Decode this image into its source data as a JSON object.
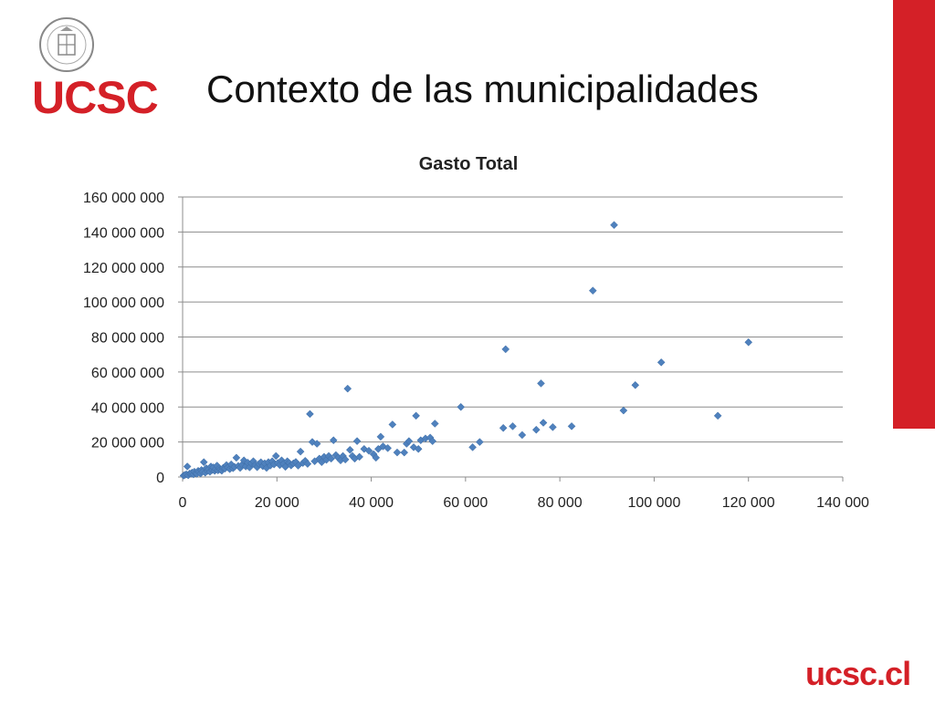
{
  "slide": {
    "title": "Contexto de las municipalidades",
    "logo_text": "UCSC",
    "footer_text": "ucsc.cl",
    "accent_color": "#d42027"
  },
  "icons": {
    "seal": "university-seal-icon"
  },
  "chart_data": {
    "type": "scatter",
    "title": "Gasto Total",
    "xlabel": "",
    "ylabel": "",
    "xlim": [
      0,
      140000
    ],
    "ylim": [
      0,
      160000000
    ],
    "x_ticks": [
      "0",
      "20 000",
      "40 000",
      "60 000",
      "80 000",
      "100 000",
      "120 000",
      "140 000"
    ],
    "y_ticks": [
      "0",
      "20 000 000",
      "40 000 000",
      "60 000 000",
      "80 000 000",
      "100 000 000",
      "120 000 000",
      "140 000 000",
      "160 000 000"
    ],
    "grid": true,
    "legend": "none",
    "marker_color": "#4f81bd",
    "points": [
      [
        200,
        800000
      ],
      [
        500,
        1200000
      ],
      [
        800,
        1500000
      ],
      [
        1000,
        6000000
      ],
      [
        1200,
        1000000
      ],
      [
        1500,
        2000000
      ],
      [
        1800,
        1800000
      ],
      [
        2000,
        2500000
      ],
      [
        2300,
        1500000
      ],
      [
        2500,
        3000000
      ],
      [
        2800,
        2200000
      ],
      [
        3000,
        1800000
      ],
      [
        3300,
        3500000
      ],
      [
        3500,
        2800000
      ],
      [
        3800,
        2000000
      ],
      [
        4000,
        4000000
      ],
      [
        4200,
        3000000
      ],
      [
        4500,
        8500000
      ],
      [
        4800,
        2500000
      ],
      [
        5000,
        5000000
      ],
      [
        5300,
        3500000
      ],
      [
        5500,
        4500000
      ],
      [
        5800,
        3000000
      ],
      [
        6000,
        6000000
      ],
      [
        6300,
        4000000
      ],
      [
        6500,
        5500000
      ],
      [
        6800,
        3500000
      ],
      [
        7000,
        4500000
      ],
      [
        7300,
        6500000
      ],
      [
        7500,
        3800000
      ],
      [
        7800,
        5000000
      ],
      [
        8000,
        4200000
      ],
      [
        8300,
        3600000
      ],
      [
        8600,
        5200000
      ],
      [
        9000,
        4800000
      ],
      [
        9300,
        6800000
      ],
      [
        9600,
        5500000
      ],
      [
        10000,
        4500000
      ],
      [
        10300,
        7200000
      ],
      [
        10700,
        5000000
      ],
      [
        11000,
        5800000
      ],
      [
        11400,
        11000000
      ],
      [
        11800,
        6300000
      ],
      [
        12200,
        5200000
      ],
      [
        12600,
        7000000
      ],
      [
        13000,
        9500000
      ],
      [
        13400,
        6000000
      ],
      [
        13800,
        8200000
      ],
      [
        14200,
        5500000
      ],
      [
        14600,
        7800000
      ],
      [
        15000,
        9000000
      ],
      [
        15400,
        6800000
      ],
      [
        15800,
        5600000
      ],
      [
        16200,
        7500000
      ],
      [
        16600,
        8400000
      ],
      [
        17000,
        6200000
      ],
      [
        17400,
        7800000
      ],
      [
        17800,
        5200000
      ],
      [
        18200,
        8500000
      ],
      [
        18600,
        6500000
      ],
      [
        19000,
        9000000
      ],
      [
        19400,
        7200000
      ],
      [
        19800,
        12000000
      ],
      [
        20200,
        8000000
      ],
      [
        20600,
        6800000
      ],
      [
        21000,
        9500000
      ],
      [
        21400,
        7500000
      ],
      [
        21800,
        5800000
      ],
      [
        22200,
        9000000
      ],
      [
        22600,
        8000000
      ],
      [
        23000,
        6600000
      ],
      [
        23500,
        7800000
      ],
      [
        24000,
        8600000
      ],
      [
        24500,
        6500000
      ],
      [
        25000,
        14500000
      ],
      [
        25500,
        8000000
      ],
      [
        26000,
        9200000
      ],
      [
        26500,
        7500000
      ],
      [
        27000,
        36000000
      ],
      [
        27500,
        20000000
      ],
      [
        28000,
        9000000
      ],
      [
        28500,
        19000000
      ],
      [
        29000,
        10500000
      ],
      [
        29500,
        8500000
      ],
      [
        30000,
        11500000
      ],
      [
        30500,
        9800000
      ],
      [
        31000,
        12000000
      ],
      [
        31500,
        10500000
      ],
      [
        32000,
        21000000
      ],
      [
        32500,
        12500000
      ],
      [
        33000,
        11000000
      ],
      [
        33500,
        9500000
      ],
      [
        34000,
        12000000
      ],
      [
        34500,
        10000000
      ],
      [
        35000,
        50500000
      ],
      [
        35500,
        15500000
      ],
      [
        36000,
        12000000
      ],
      [
        36500,
        10500000
      ],
      [
        37000,
        20500000
      ],
      [
        37500,
        11500000
      ],
      [
        38500,
        16000000
      ],
      [
        39500,
        15000000
      ],
      [
        40500,
        13000000
      ],
      [
        41000,
        11000000
      ],
      [
        41500,
        16000000
      ],
      [
        42000,
        23000000
      ],
      [
        42500,
        17500000
      ],
      [
        43500,
        16500000
      ],
      [
        44500,
        30000000
      ],
      [
        45500,
        14000000
      ],
      [
        47000,
        14000000
      ],
      [
        47500,
        19000000
      ],
      [
        48000,
        20500000
      ],
      [
        49000,
        17000000
      ],
      [
        49500,
        35000000
      ],
      [
        50000,
        16000000
      ],
      [
        50500,
        21000000
      ],
      [
        51500,
        22000000
      ],
      [
        52500,
        22500000
      ],
      [
        53000,
        20500000
      ],
      [
        53500,
        30500000
      ],
      [
        59000,
        40000000
      ],
      [
        61500,
        17000000
      ],
      [
        63000,
        20000000
      ],
      [
        68000,
        28000000
      ],
      [
        68500,
        73000000
      ],
      [
        70000,
        29000000
      ],
      [
        72000,
        24000000
      ],
      [
        75000,
        27000000
      ],
      [
        76000,
        53500000
      ],
      [
        76500,
        31000000
      ],
      [
        78500,
        28500000
      ],
      [
        82500,
        29000000
      ],
      [
        87000,
        106500000
      ],
      [
        91500,
        144000000
      ],
      [
        93500,
        38000000
      ],
      [
        96000,
        52500000
      ],
      [
        101500,
        65500000
      ],
      [
        113500,
        35000000
      ],
      [
        120000,
        77000000
      ]
    ]
  }
}
